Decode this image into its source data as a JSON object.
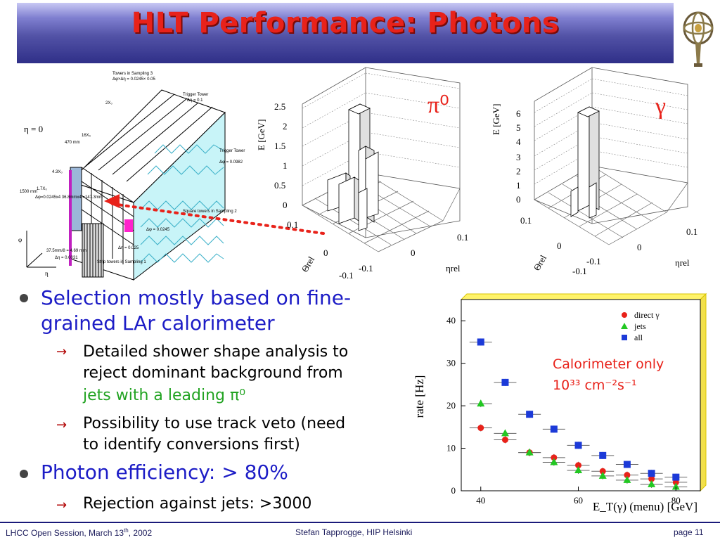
{
  "title": "HLT Performance: Photons",
  "calorimeter": {
    "eta": "η = 0",
    "towers_s3": "Towers in Sampling 3",
    "towers_s3_dim": "Δφ×Δη = 0.0245× 0.05",
    "trigger_top": "Trigger Tower",
    "trigger_top_deta": "Δη = 0.1",
    "trigger_side": "Trigger Tower",
    "trigger_side_dphi": "Δφ = 0.0982",
    "x2": "2X₀",
    "x16": "16X₀",
    "x43": "4.3X₀",
    "x17": "1.7X₀",
    "len470": "470 mm",
    "len1500": "1500 mm",
    "cell_dims": "Δφ=0.0245x4 36.8mmx4 =147.3mm",
    "square_towers": "Square towers in Sampling 2",
    "dphi_0245": "Δφ = 0.0245",
    "deta_025": "Δη = 0.025",
    "strip_dim": "37.5mm/8 = 4.69 mm",
    "strip_deta": "Δη = 0.0031",
    "strip_towers": "Strip towers in Sampling 1",
    "phi": "φ",
    "eta_axis": "η"
  },
  "lego_pi0": {
    "symbol": "π⁰",
    "ylabel": "E [GeV]",
    "zticks": [
      "2.5",
      "2",
      "1.5",
      "1",
      "0.5",
      "0"
    ],
    "theta": "Θrel",
    "eta": "ηrel",
    "theta_ticks": [
      "0.1",
      "0",
      "-0.1"
    ],
    "eta_ticks": [
      "-0.1",
      "0",
      "0.1"
    ]
  },
  "lego_gamma": {
    "symbol": "γ",
    "ylabel": "E [GeV]",
    "zticks": [
      "6",
      "5",
      "4",
      "3",
      "2",
      "1",
      "0"
    ],
    "theta": "Θrel",
    "eta": "ηrel",
    "theta_ticks": [
      "0.1",
      "0",
      "-0.1"
    ],
    "eta_ticks": [
      "-0.1",
      "0",
      "0.1"
    ]
  },
  "bullets": [
    {
      "text": "Selection mostly based on fine-grained LAr calorimeter",
      "line1": "Selection mostly based on fine-",
      "line2": "grained LAr calorimeter",
      "subs": [
        {
          "line1": "Detailed shower shape analysis to",
          "line2": "reject dominant background from",
          "line3": "jets with a leading π⁰"
        },
        {
          "line1": "Possibility to use track veto (need",
          "line2": "to identify conversions first)"
        }
      ]
    },
    {
      "line1": "Photon efficiency: > 80%",
      "subs": [
        {
          "line1": "Rejection against jets:  >3000"
        }
      ]
    }
  ],
  "chart_data": {
    "type": "scatter",
    "xlabel": "E_T(γ) (menu) [GeV]",
    "ylabel": "rate [Hz]",
    "xlim": [
      36,
      85
    ],
    "ylim": [
      0,
      45
    ],
    "x_ticks": [
      40,
      60,
      80
    ],
    "y_ticks": [
      0,
      10,
      20,
      30,
      40
    ],
    "annotation_line1": "Calorimeter only",
    "annotation_line2": "10³³ cm⁻²s⁻¹",
    "series": [
      {
        "name": "direct γ",
        "color": "#e8221a",
        "marker": "circle",
        "x": [
          40,
          45,
          50,
          55,
          60,
          65,
          70,
          75,
          80
        ],
        "y": [
          14.8,
          12.0,
          9.0,
          7.8,
          6.0,
          4.6,
          3.7,
          2.8,
          2.0
        ]
      },
      {
        "name": "jets",
        "color": "#22c822",
        "marker": "triangle",
        "x": [
          40,
          45,
          50,
          55,
          60,
          65,
          70,
          75,
          80
        ],
        "y": [
          20.5,
          13.5,
          9.0,
          6.7,
          4.8,
          3.5,
          2.5,
          1.5,
          0.9
        ]
      },
      {
        "name": "all",
        "color": "#1c3ad8",
        "marker": "square",
        "x": [
          40,
          45,
          50,
          55,
          60,
          65,
          70,
          75,
          80
        ],
        "y": [
          35.0,
          25.5,
          18.0,
          14.5,
          10.7,
          8.3,
          6.2,
          4.1,
          3.2
        ]
      }
    ]
  },
  "footer": {
    "left": "LHCC Open Session, March 13",
    "left_sup": "th",
    "left_end": ", 2002",
    "center": "Stefan Tapprogge, HIP Helsinki",
    "right": "page 11"
  },
  "colors": {
    "title": "#e8221a",
    "bullet_blue": "#1c1cc6",
    "green": "#22a322"
  }
}
